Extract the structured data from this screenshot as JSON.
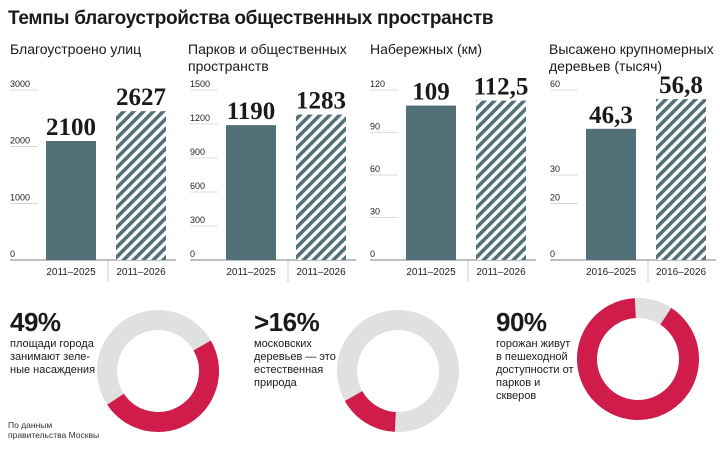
{
  "title": "Темпы благоустройства общественных пространств",
  "colors": {
    "bar": "#527077",
    "hatch": "#527077",
    "pink": "#d01c4b",
    "grey": "#dfe1de"
  },
  "chart_data": [
    {
      "type": "bar",
      "title": "Благоустроено улиц",
      "categories": [
        "2011–2025",
        "2011–2026"
      ],
      "values": [
        2100,
        2627
      ],
      "value_labels": [
        "2100",
        "2627"
      ],
      "yticks": [
        "0",
        "1000",
        "2000",
        "3000"
      ],
      "ylim": [
        0,
        3000
      ]
    },
    {
      "type": "bar",
      "title": "Парков и общественных пространств",
      "categories": [
        "2011–2025",
        "2011–2026"
      ],
      "values": [
        1190,
        1283
      ],
      "value_labels": [
        "1190",
        "1283"
      ],
      "yticks": [
        "0",
        "300",
        "600",
        "900",
        "1200",
        "1500"
      ],
      "ylim": [
        0,
        1500
      ]
    },
    {
      "type": "bar",
      "title": "Набережных (км)",
      "categories": [
        "2011–2025",
        "2011–2026"
      ],
      "values": [
        109,
        112.5
      ],
      "value_labels": [
        "109",
        "112,5"
      ],
      "yticks": [
        "0",
        "30",
        "60",
        "90",
        "120"
      ],
      "ylim": [
        0,
        120
      ]
    },
    {
      "type": "bar",
      "title": "Высажено крупномерных деревьев (тысяч)",
      "categories": [
        "2016–2025",
        "2016–2026"
      ],
      "values": [
        46.3,
        56.8
      ],
      "value_labels": [
        "46,3",
        "56,8"
      ],
      "yticks": [
        "0",
        "20",
        "30",
        "60"
      ],
      "ylim": [
        0,
        60
      ]
    },
    {
      "type": "pie",
      "value": 49,
      "label": "49%",
      "text": "площади города занимают зеле-ные насаждения"
    },
    {
      "type": "pie",
      "value": 16,
      "label": ">16%",
      "text": "московских деревьев — это естественная природа"
    },
    {
      "type": "pie",
      "value": 90,
      "label": "90%",
      "text": "горожан живут в пешеходной доступности от парков и скверов"
    }
  ],
  "source": "По данным правительства Москвы"
}
